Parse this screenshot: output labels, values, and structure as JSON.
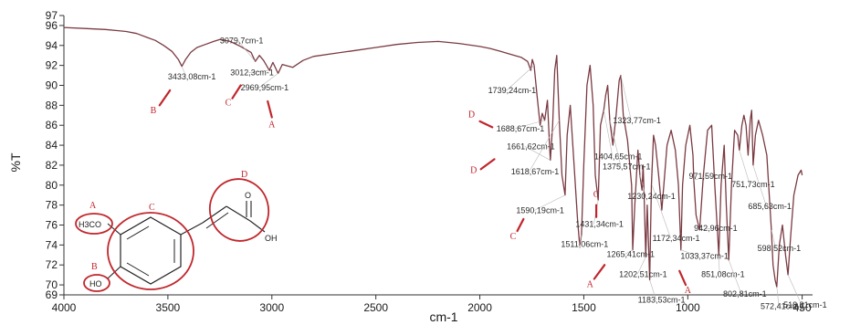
{
  "chart_data": {
    "type": "line",
    "title": "",
    "xlabel": "cm-1",
    "ylabel": "%T",
    "xlim": [
      4000,
      400
    ],
    "ylim": [
      69,
      97
    ],
    "x_reversed": true,
    "xticks": [
      4000,
      3500,
      3000,
      2500,
      2000,
      1500,
      1000,
      450
    ],
    "yticks": [
      69,
      70,
      72,
      74,
      76,
      78,
      80,
      82,
      84,
      86,
      88,
      90,
      92,
      94,
      96,
      97
    ],
    "grid": false,
    "line_color": "#7a3a42",
    "annotation_color": "#c0262c",
    "series": [
      {
        "points": [
          [
            4000,
            95.8
          ],
          [
            3900,
            95.7
          ],
          [
            3800,
            95.6
          ],
          [
            3700,
            95.4
          ],
          [
            3650,
            95.2
          ],
          [
            3600,
            94.8
          ],
          [
            3560,
            94.5
          ],
          [
            3520,
            94.0
          ],
          [
            3480,
            93.4
          ],
          [
            3450,
            92.6
          ],
          [
            3433,
            91.9
          ],
          [
            3415,
            92.6
          ],
          [
            3390,
            93.3
          ],
          [
            3360,
            93.8
          ],
          [
            3320,
            94.1
          ],
          [
            3280,
            94.4
          ],
          [
            3250,
            94.6
          ],
          [
            3200,
            94.4
          ],
          [
            3150,
            93.9
          ],
          [
            3100,
            93.3
          ],
          [
            3080,
            92.4
          ],
          [
            3060,
            93.0
          ],
          [
            3040,
            92.5
          ],
          [
            3012,
            91.5
          ],
          [
            2995,
            92.3
          ],
          [
            2970,
            91.2
          ],
          [
            2950,
            92.1
          ],
          [
            2900,
            91.8
          ],
          [
            2850,
            92.5
          ],
          [
            2800,
            92.9
          ],
          [
            2700,
            93.2
          ],
          [
            2600,
            93.5
          ],
          [
            2500,
            93.8
          ],
          [
            2400,
            94.1
          ],
          [
            2300,
            94.3
          ],
          [
            2200,
            94.4
          ],
          [
            2100,
            94.2
          ],
          [
            2000,
            93.9
          ],
          [
            1950,
            93.7
          ],
          [
            1900,
            93.4
          ],
          [
            1850,
            93.1
          ],
          [
            1800,
            92.8
          ],
          [
            1770,
            92.4
          ],
          [
            1755,
            91.5
          ],
          [
            1748,
            92.6
          ],
          [
            1739,
            92.0
          ],
          [
            1725,
            89.0
          ],
          [
            1710,
            86.0
          ],
          [
            1700,
            87.2
          ],
          [
            1688,
            86.5
          ],
          [
            1675,
            88.5
          ],
          [
            1665,
            84.0
          ],
          [
            1661,
            82.5
          ],
          [
            1650,
            86.0
          ],
          [
            1640,
            91.5
          ],
          [
            1630,
            93.0
          ],
          [
            1618,
            86.5
          ],
          [
            1605,
            81.0
          ],
          [
            1590,
            79.0
          ],
          [
            1580,
            85.0
          ],
          [
            1565,
            88.0
          ],
          [
            1550,
            83.0
          ],
          [
            1530,
            76.5
          ],
          [
            1520,
            74.0
          ],
          [
            1511,
            75.0
          ],
          [
            1500,
            82.0
          ],
          [
            1485,
            90.0
          ],
          [
            1470,
            92.0
          ],
          [
            1455,
            88.0
          ],
          [
            1445,
            81.0
          ],
          [
            1431,
            78.5
          ],
          [
            1420,
            86.0
          ],
          [
            1404,
            87.5
          ],
          [
            1395,
            89.0
          ],
          [
            1385,
            90.0
          ],
          [
            1375,
            86.5
          ],
          [
            1360,
            84.0
          ],
          [
            1345,
            87.0
          ],
          [
            1330,
            90.5
          ],
          [
            1322,
            91.0
          ],
          [
            1310,
            87.0
          ],
          [
            1290,
            84.5
          ],
          [
            1270,
            80.0
          ],
          [
            1265,
            73.5
          ],
          [
            1255,
            78.0
          ],
          [
            1240,
            83.5
          ],
          [
            1230,
            81.0
          ],
          [
            1220,
            79.5
          ],
          [
            1215,
            82.0
          ],
          [
            1210,
            79.0
          ],
          [
            1202,
            72.8
          ],
          [
            1195,
            78.0
          ],
          [
            1183,
            70.5
          ],
          [
            1175,
            80.0
          ],
          [
            1165,
            85.0
          ],
          [
            1155,
            84.0
          ],
          [
            1140,
            81.0
          ],
          [
            1125,
            77.5
          ],
          [
            1115,
            80.0
          ],
          [
            1100,
            84.0
          ],
          [
            1080,
            85.5
          ],
          [
            1060,
            83.5
          ],
          [
            1045,
            80.0
          ],
          [
            1033,
            73.5
          ],
          [
            1025,
            80.0
          ],
          [
            1010,
            84.0
          ],
          [
            990,
            86.0
          ],
          [
            975,
            83.0
          ],
          [
            971,
            80.5
          ],
          [
            960,
            77.0
          ],
          [
            943,
            75.5
          ],
          [
            925,
            81.0
          ],
          [
            905,
            85.5
          ],
          [
            885,
            86.0
          ],
          [
            870,
            80.0
          ],
          [
            851,
            73.0
          ],
          [
            840,
            80.0
          ],
          [
            825,
            84.0
          ],
          [
            815,
            78.0
          ],
          [
            803,
            72.5
          ],
          [
            790,
            80.0
          ],
          [
            775,
            85.5
          ],
          [
            760,
            85.0
          ],
          [
            752,
            83.5
          ],
          [
            740,
            86.0
          ],
          [
            730,
            87.0
          ],
          [
            720,
            86.0
          ],
          [
            710,
            83.0
          ],
          [
            700,
            86.5
          ],
          [
            693,
            87.5
          ],
          [
            686,
            82.0
          ],
          [
            675,
            85.0
          ],
          [
            660,
            86.5
          ],
          [
            640,
            85.0
          ],
          [
            620,
            83.0
          ],
          [
            598,
            75.5
          ],
          [
            590,
            72.0
          ],
          [
            580,
            70.5
          ],
          [
            572,
            69.8
          ],
          [
            560,
            74.0
          ],
          [
            545,
            76.0
          ],
          [
            530,
            73.0
          ],
          [
            518,
            71.0
          ],
          [
            505,
            75.0
          ],
          [
            490,
            79.0
          ],
          [
            470,
            81.0
          ],
          [
            455,
            81.5
          ],
          [
            450,
            81.0
          ]
        ]
      }
    ],
    "peak_labels": [
      {
        "text": "3433,08cm-1",
        "x": 3433,
        "y": 91.9,
        "lx": 3500,
        "ly": 90.6
      },
      {
        "text": "3079,7cm-1",
        "x": 3080,
        "y": 92.4,
        "lx": 3250,
        "ly": 94.2
      },
      {
        "text": "3012,3cm-1",
        "x": 3012,
        "y": 91.5,
        "lx": 3200,
        "ly": 91.0
      },
      {
        "text": "2969,95cm-1",
        "x": 2970,
        "y": 91.2,
        "lx": 3150,
        "ly": 89.5
      },
      {
        "text": "1739,24cm-1",
        "x": 1739,
        "y": 92.0,
        "lx": 1960,
        "ly": 89.2
      },
      {
        "text": "1688,67cm-1",
        "x": 1688,
        "y": 86.5,
        "lx": 1920,
        "ly": 85.4
      },
      {
        "text": "1661,62cm-1",
        "x": 1661,
        "y": 82.5,
        "lx": 1870,
        "ly": 83.6
      },
      {
        "text": "1618,67cm-1",
        "x": 1618,
        "y": 86.5,
        "lx": 1850,
        "ly": 81.1
      },
      {
        "text": "1590,19cm-1",
        "x": 1590,
        "y": 79.0,
        "lx": 1825,
        "ly": 77.2
      },
      {
        "text": "1511,06cm-1",
        "x": 1511,
        "y": 75.0,
        "lx": 1610,
        "ly": 73.8
      },
      {
        "text": "1431,34cm-1",
        "x": 1431,
        "y": 78.5,
        "lx": 1540,
        "ly": 75.8
      },
      {
        "text": "1404,65cm-1",
        "x": 1404,
        "y": 87.5,
        "lx": 1450,
        "ly": 82.6
      },
      {
        "text": "1375,57cm-1",
        "x": 1375,
        "y": 86.5,
        "lx": 1410,
        "ly": 81.6
      },
      {
        "text": "1323,77cm-1",
        "x": 1322,
        "y": 91.0,
        "lx": 1360,
        "ly": 86.2
      },
      {
        "text": "1265,41cm-1",
        "x": 1265,
        "y": 73.5,
        "lx": 1390,
        "ly": 72.8
      },
      {
        "text": "1202,51cm-1",
        "x": 1202,
        "y": 72.8,
        "lx": 1330,
        "ly": 70.8
      },
      {
        "text": "1183,53cm-1",
        "x": 1183,
        "y": 70.5,
        "lx": 1240,
        "ly": 68.2
      },
      {
        "text": "1230,24cm-1",
        "x": 1230,
        "y": 81.0,
        "lx": 1290,
        "ly": 78.6
      },
      {
        "text": "1172,34cm-1",
        "x": 1172,
        "y": 80.0,
        "lx": 1170,
        "ly": 74.4
      },
      {
        "text": "1033,37cm-1",
        "x": 1033,
        "y": 73.5,
        "lx": 1035,
        "ly": 72.6
      },
      {
        "text": "971,59cm-1",
        "x": 971,
        "y": 80.5,
        "lx": 995,
        "ly": 80.6
      },
      {
        "text": "942,96cm-1",
        "x": 943,
        "y": 75.5,
        "lx": 970,
        "ly": 75.4
      },
      {
        "text": "851,08cm-1",
        "x": 851,
        "y": 73.0,
        "lx": 935,
        "ly": 70.8
      },
      {
        "text": "802,81cm-1",
        "x": 803,
        "y": 72.5,
        "lx": 830,
        "ly": 68.8
      },
      {
        "text": "751,73cm-1",
        "x": 752,
        "y": 83.5,
        "lx": 790,
        "ly": 79.8
      },
      {
        "text": "685,63cm-1",
        "x": 686,
        "y": 82.0,
        "lx": 710,
        "ly": 77.6
      },
      {
        "text": "598,52cm-1",
        "x": 598,
        "y": 75.5,
        "lx": 665,
        "ly": 73.4
      },
      {
        "text": "572,41cm-1",
        "x": 572,
        "y": 69.8,
        "lx": 650,
        "ly": 67.6
      },
      {
        "text": "518,31cm-1",
        "x": 518,
        "y": 71.0,
        "lx": 540,
        "ly": 67.7
      }
    ],
    "group_markers": [
      {
        "tag": "B",
        "tx": 3570,
        "ty": 87.2,
        "ax1": 3540,
        "ay1": 88.0,
        "ax2": 3490,
        "ay2": 89.5
      },
      {
        "tag": "C",
        "tx": 3210,
        "ty": 88.0,
        "ax1": 3190,
        "ay1": 88.7,
        "ax2": 3150,
        "ay2": 90.0
      },
      {
        "tag": "A",
        "tx": 3000,
        "ty": 85.8,
        "ax1": 3000,
        "ay1": 86.8,
        "ax2": 3020,
        "ay2": 88.4
      },
      {
        "tag": "D",
        "tx": 2040,
        "ty": 86.8,
        "ax1": 2000,
        "ay1": 86.4,
        "ax2": 1940,
        "ay2": 85.8
      },
      {
        "tag": "D",
        "tx": 2030,
        "ty": 81.2,
        "ax1": 1995,
        "ay1": 81.6,
        "ax2": 1930,
        "ay2": 82.6
      },
      {
        "tag": "C",
        "tx": 1840,
        "ty": 74.6,
        "ax1": 1820,
        "ay1": 75.4,
        "ax2": 1790,
        "ay2": 76.6
      },
      {
        "tag": "C",
        "tx": 1440,
        "ty": 78.8,
        "ax1": 1440,
        "ay1": 78.0,
        "ax2": 1440,
        "ay2": 76.8
      },
      {
        "tag": "A",
        "tx": 1470,
        "ty": 69.8,
        "ax1": 1450,
        "ay1": 70.6,
        "ax2": 1400,
        "ay2": 72.0
      },
      {
        "tag": "A",
        "tx": 1000,
        "ty": 69.2,
        "ax1": 1010,
        "ay1": 70.0,
        "ax2": 1040,
        "ay2": 71.4
      }
    ]
  },
  "molecule": {
    "ring_tag": "C",
    "methoxy_tag": "A",
    "methoxy_label": "H3CO",
    "hydroxy_tag": "B",
    "hydroxy_label": "HO",
    "acid_tag": "D",
    "carbonyl_label": "O",
    "acid_oh_label": "OH"
  }
}
